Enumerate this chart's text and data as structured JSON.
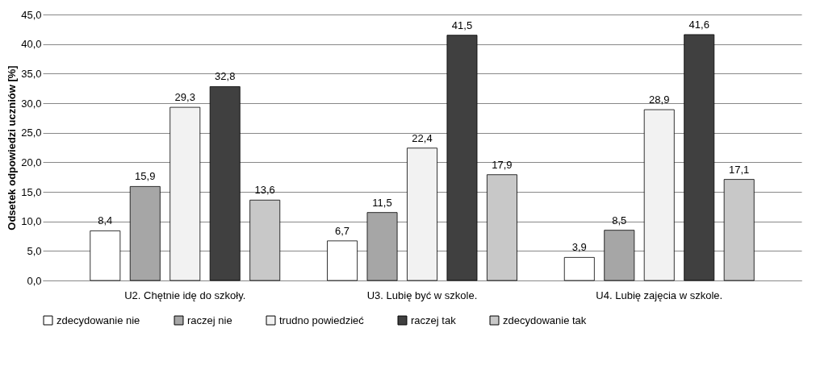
{
  "chart_data": {
    "type": "bar",
    "ylabel": "Odsetek odpowiedzi uczniów [%]",
    "categories": [
      "U2. Chętnie idę do szkoły.",
      "U3. Lubię być w szkole.",
      "U4. Lubię zajęcia w szkole."
    ],
    "series": [
      {
        "name": "zdecydowanie nie",
        "color": "#ffffff",
        "values": [
          8.4,
          6.7,
          3.9
        ],
        "value_labels": [
          "8,4",
          "6,7",
          "3,9"
        ]
      },
      {
        "name": "raczej nie",
        "color": "#a6a6a6",
        "values": [
          15.9,
          11.5,
          8.5
        ],
        "value_labels": [
          "15,9",
          "11,5",
          "8,5"
        ]
      },
      {
        "name": "trudno powiedzieć",
        "color": "#f2f2f2",
        "values": [
          29.3,
          22.4,
          28.9
        ],
        "value_labels": [
          "29,3",
          "22,4",
          "28,9"
        ]
      },
      {
        "name": "raczej tak",
        "color": "#404040",
        "values": [
          32.8,
          41.5,
          41.6
        ],
        "value_labels": [
          "32,8",
          "41,5",
          "41,6"
        ]
      },
      {
        "name": "zdecydowanie tak",
        "color": "#c8c8c8",
        "values": [
          13.6,
          17.9,
          17.1
        ],
        "value_labels": [
          "13,6",
          "17,9",
          "17,1"
        ]
      }
    ],
    "ylim": [
      0,
      45
    ],
    "yticks": [
      {
        "value": 0,
        "label": "0,0"
      },
      {
        "value": 5,
        "label": "5,0"
      },
      {
        "value": 10,
        "label": "10,0"
      },
      {
        "value": 15,
        "label": "15,0"
      },
      {
        "value": 20,
        "label": "20,0"
      },
      {
        "value": 25,
        "label": "25,0"
      },
      {
        "value": 30,
        "label": "30,0"
      },
      {
        "value": 35,
        "label": "35,0"
      },
      {
        "value": 40,
        "label": "40,0"
      },
      {
        "value": 45,
        "label": "45,0"
      }
    ],
    "grid": "y",
    "legend": "bottom"
  }
}
